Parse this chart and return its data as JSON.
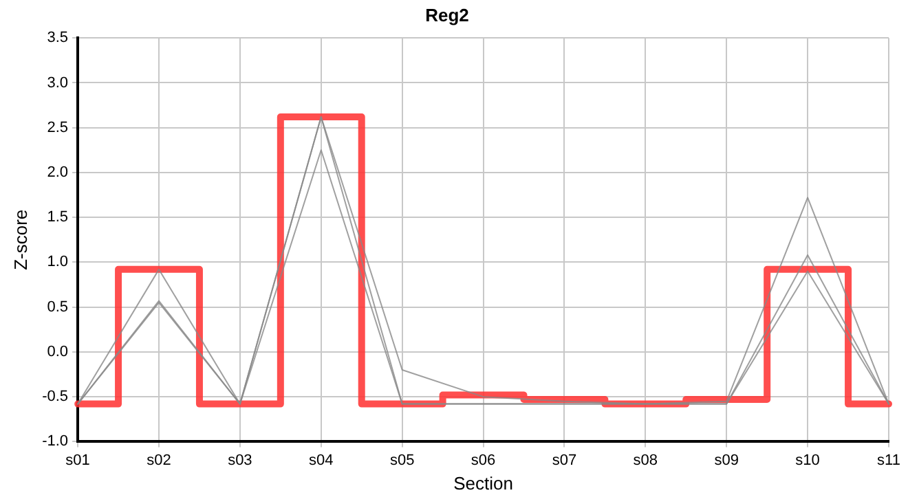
{
  "chart_data": {
    "type": "line",
    "title": "Reg2",
    "xlabel": "Section",
    "ylabel": "Z-score",
    "categories": [
      "s01",
      "s02",
      "s03",
      "s04",
      "s05",
      "s06",
      "s07",
      "s08",
      "s09",
      "s10",
      "s11"
    ],
    "series": [
      {
        "type": "line",
        "color": "#888888",
        "values": [
          -0.58,
          0.92,
          -0.58,
          2.62,
          -0.2,
          -0.5,
          -0.55,
          -0.58,
          -0.55,
          1.72,
          -0.58
        ]
      },
      {
        "type": "line",
        "color": "#888888",
        "values": [
          -0.58,
          0.57,
          -0.58,
          2.62,
          -0.58,
          -0.58,
          -0.58,
          -0.58,
          -0.58,
          1.08,
          -0.58
        ]
      },
      {
        "type": "line",
        "color": "#888888",
        "values": [
          -0.58,
          0.55,
          -0.58,
          2.25,
          -0.58,
          -0.58,
          -0.58,
          -0.58,
          -0.58,
          0.9,
          -0.58
        ]
      },
      {
        "type": "step",
        "color": "#ff3333",
        "values": [
          -0.58,
          0.92,
          -0.58,
          2.62,
          -0.58,
          -0.48,
          -0.53,
          -0.58,
          -0.53,
          0.92,
          -0.58
        ]
      }
    ],
    "ylim": [
      -1.0,
      3.5
    ],
    "yticks": [
      {
        "value": -1.0,
        "label": "-1.0"
      },
      {
        "value": -0.5,
        "label": "-0.5"
      },
      {
        "value": 0,
        "label": "0.0"
      },
      {
        "value": 0.5,
        "label": "0.5"
      },
      {
        "value": 1.0,
        "label": "1.0"
      },
      {
        "value": 1.5,
        "label": "1.5"
      },
      {
        "value": 2.0,
        "label": "2.0"
      },
      {
        "value": 2.5,
        "label": "2.5"
      },
      {
        "value": 3.0,
        "label": "3.0"
      },
      {
        "value": 3.5,
        "label": "3.5"
      }
    ],
    "grid": true,
    "legend": false,
    "marker": "none"
  }
}
